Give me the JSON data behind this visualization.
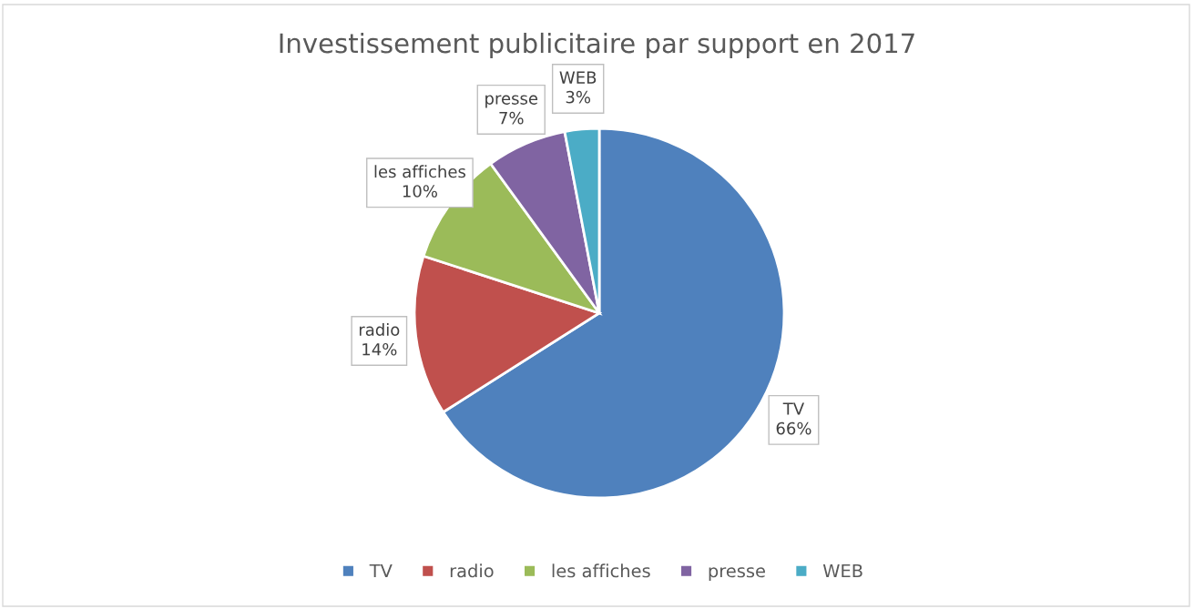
{
  "chart_data": {
    "type": "pie",
    "title": "Investissement publicitaire par support en 2017",
    "categories": [
      "TV",
      "radio",
      "les affiches",
      "presse",
      "WEB"
    ],
    "values": [
      66,
      14,
      10,
      7,
      3
    ],
    "colors": [
      "#4f81bd",
      "#c0504d",
      "#9bbb59",
      "#8064a2",
      "#4bacc6"
    ],
    "value_labels": [
      "66%",
      "14%",
      "10%",
      "7%",
      "3%"
    ],
    "legend": "bottom"
  }
}
